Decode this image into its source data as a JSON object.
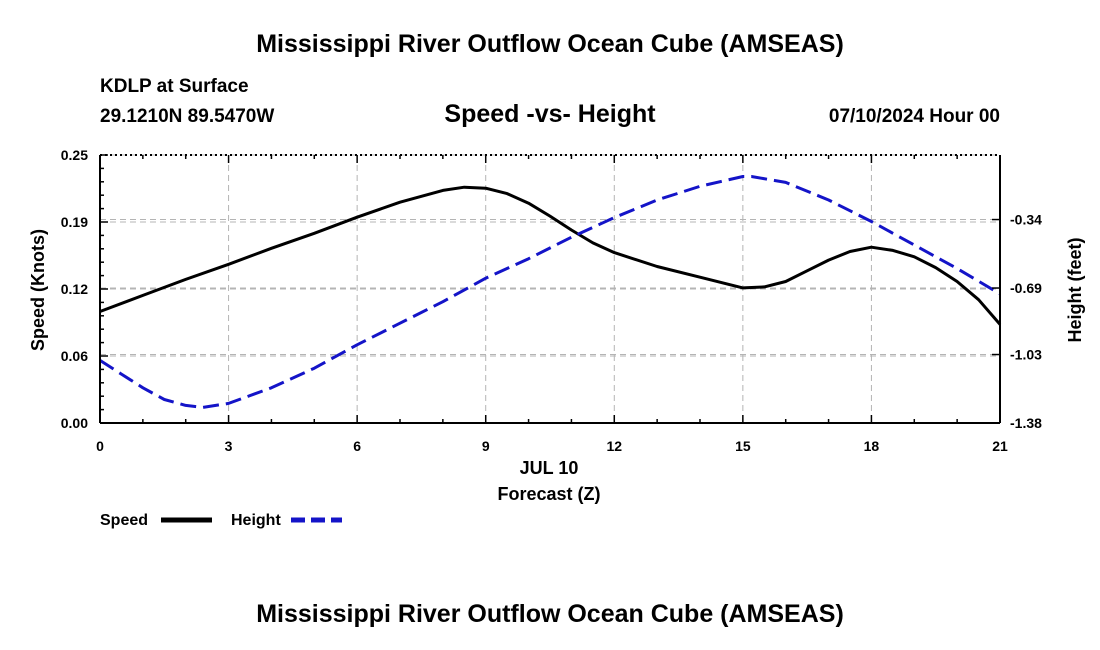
{
  "header": {
    "title": "Mississippi River Outflow Ocean Cube (AMSEAS)",
    "station": "KDLP at Surface",
    "coords": "29.1210N  89.5470W",
    "subtitle": "Speed -vs- Height",
    "datestamp": "07/10/2024 Hour 00"
  },
  "footer": {
    "title": "Mississippi River Outflow Ocean Cube (AMSEAS)"
  },
  "colors": {
    "speed": "#000000",
    "height": "#1414c8",
    "grid": "#b4b4b4"
  },
  "chart_data": {
    "type": "line",
    "title": "Speed -vs- Height",
    "xlabel": "Forecast (Z)",
    "xlabel_date": "JUL 10",
    "ylabel": "Speed (Knots)",
    "y2label": "Height (feet)",
    "xlim": [
      0,
      21
    ],
    "ylim": [
      0,
      0.25
    ],
    "y2lim": [
      -1.38,
      -0.01
    ],
    "x_ticks": [
      0,
      3,
      6,
      9,
      12,
      15,
      18,
      21
    ],
    "x_tick_labels": [
      "0",
      "3",
      "6",
      "9",
      "12",
      "15",
      "18",
      "21"
    ],
    "y_ticks": [
      0,
      0.0625,
      0.125,
      0.1875,
      0.25
    ],
    "y_tick_labels": [
      "0.00",
      "0.06",
      "0.12",
      "0.19",
      "0.25"
    ],
    "y2_ticks": [
      -1.38,
      -1.03,
      -0.69,
      -0.34
    ],
    "y2_tick_labels": [
      "-1.38",
      "-1.03",
      "-0.69",
      "-0.34"
    ],
    "grid": true,
    "legend": [
      {
        "name": "Speed",
        "style": "solid",
        "color": "#000000"
      },
      {
        "name": "Height",
        "style": "dashed",
        "color": "#1414c8"
      }
    ],
    "series": [
      {
        "name": "Speed",
        "axis": "left",
        "x": [
          0,
          1,
          2,
          3,
          4,
          5,
          6,
          7,
          8,
          8.5,
          9,
          9.5,
          10,
          10.5,
          11,
          11.5,
          12,
          13,
          14,
          15,
          15.5,
          16,
          16.5,
          17,
          17.5,
          18,
          18.5,
          19,
          19.5,
          20,
          20.5,
          21
        ],
        "values": [
          0.104,
          0.119,
          0.134,
          0.148,
          0.163,
          0.177,
          0.192,
          0.206,
          0.217,
          0.22,
          0.219,
          0.214,
          0.205,
          0.193,
          0.18,
          0.168,
          0.159,
          0.146,
          0.136,
          0.126,
          0.127,
          0.132,
          0.142,
          0.152,
          0.16,
          0.164,
          0.161,
          0.155,
          0.145,
          0.132,
          0.115,
          0.092
        ]
      },
      {
        "name": "Height",
        "axis": "right",
        "x": [
          0,
          0.5,
          1,
          1.5,
          2,
          2.4,
          3,
          4,
          5,
          6,
          7,
          8,
          9,
          10,
          11,
          12,
          13,
          14,
          15,
          15.2,
          16,
          17,
          18,
          19,
          20,
          21
        ],
        "values": [
          -1.06,
          -1.13,
          -1.2,
          -1.26,
          -1.29,
          -1.3,
          -1.28,
          -1.2,
          -1.1,
          -0.98,
          -0.87,
          -0.76,
          -0.64,
          -0.54,
          -0.43,
          -0.33,
          -0.24,
          -0.17,
          -0.12,
          -0.12,
          -0.15,
          -0.24,
          -0.35,
          -0.47,
          -0.59,
          -0.72
        ]
      }
    ]
  }
}
